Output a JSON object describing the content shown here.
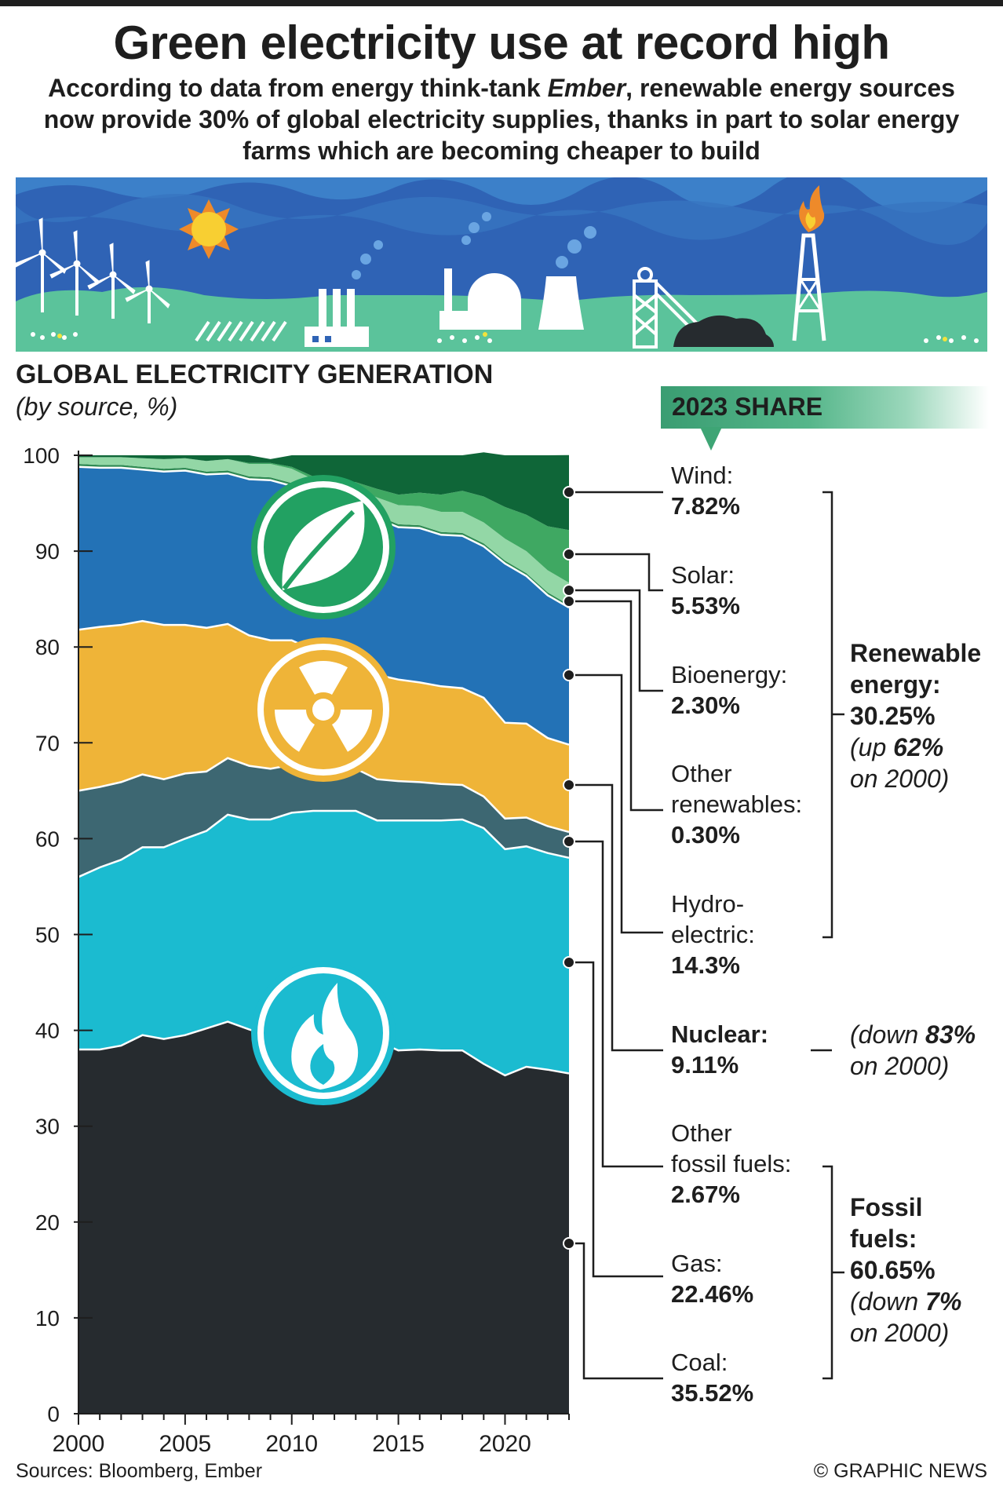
{
  "title": "Green electricity use at record high",
  "subtitle_pre": "According to data from energy think-tank ",
  "subtitle_em": "Ember",
  "subtitle_post": ", renewable energy sources now provide 30% of global electricity supplies, thanks in part to solar energy farms which are becoming cheaper to build",
  "chart_title": "GLOBAL ELECTRICITY GENERATION",
  "chart_subtitle": "(by source, %)",
  "share_heading": "2023 SHARE",
  "labels": {
    "wind": {
      "name": "Wind:",
      "value": "7.82%"
    },
    "solar": {
      "name": "Solar:",
      "value": "5.53%"
    },
    "bioenergy": {
      "name": "Bioenergy:",
      "value": "2.30%"
    },
    "other_renewables": {
      "name1": "Other",
      "name2": "renewables:",
      "value": "0.30%"
    },
    "hydro": {
      "name1": "Hydro-",
      "name2": "electric:",
      "value": "14.3%"
    },
    "nuclear": {
      "name": "Nuclear:",
      "value": "9.11%"
    },
    "other_fossil": {
      "name1": "Other",
      "name2": "fossil fuels:",
      "value": "2.67%"
    },
    "gas": {
      "name": "Gas:",
      "value": "22.46%"
    },
    "coal": {
      "name": "Coal:",
      "value": "35.52%"
    }
  },
  "groups": {
    "renewable": {
      "name1": "Renewable",
      "name2": "energy:",
      "total": "30.25%",
      "note_pre": "(up ",
      "note_num": "62%",
      "note_post": "on 2000)"
    },
    "nuclear": {
      "note_pre": "(down ",
      "note_num": "83%",
      "note_post": "on 2000)"
    },
    "fossil": {
      "name1": "Fossil",
      "name2": "fuels:",
      "total": "60.65%",
      "note_pre": "(down ",
      "note_num": "7%",
      "note_post": "on 2000)"
    }
  },
  "sources": "Sources: Bloomberg, Ember",
  "credit": "© GRAPHIC NEWS",
  "colors": {
    "coal": "#262b2f",
    "gas": "#1bbbd0",
    "other_fossil": "#3d6772",
    "nuclear": "#efb438",
    "hydro": "#2372b6",
    "other_renewables": "#2f8a53",
    "bioenergy": "#93d7a6",
    "solar": "#3fa862",
    "wind": "#0f6638",
    "banner_sky": "#2f63b5",
    "banner_hills": "#5bc39b"
  },
  "icons": [
    "leaf-icon",
    "radiation-icon",
    "flame-icon",
    "wind-turbine-icon",
    "sun-icon",
    "factory-icon",
    "nuclear-plant-icon",
    "mine-icon",
    "gas-flare-icon"
  ],
  "chart_data": {
    "type": "area",
    "stacked": true,
    "title": "GLOBAL ELECTRICITY GENERATION",
    "ylabel": "(by source, %)",
    "ylim": [
      0,
      100
    ],
    "xlim": [
      2000,
      2023
    ],
    "x_ticks": [
      2000,
      2005,
      2010,
      2015,
      2020
    ],
    "y_ticks": [
      0,
      10,
      20,
      30,
      40,
      50,
      60,
      70,
      80,
      90,
      100
    ],
    "x": [
      2000,
      2001,
      2002,
      2003,
      2004,
      2005,
      2006,
      2007,
      2008,
      2009,
      2010,
      2011,
      2012,
      2013,
      2014,
      2015,
      2016,
      2017,
      2018,
      2019,
      2020,
      2021,
      2022,
      2023
    ],
    "series": [
      {
        "name": "Coal",
        "values": [
          38.0,
          38.0,
          38.4,
          39.5,
          39.1,
          39.5,
          40.2,
          40.9,
          40.1,
          39.4,
          39.8,
          41.0,
          40.4,
          40.9,
          38.9,
          37.9,
          38.0,
          37.9,
          37.9,
          36.5,
          35.3,
          36.2,
          35.9,
          35.5
        ]
      },
      {
        "name": "Gas",
        "values": [
          18.0,
          19.0,
          19.4,
          19.6,
          20.0,
          20.5,
          20.6,
          21.6,
          21.9,
          22.6,
          22.9,
          21.9,
          22.5,
          22.0,
          23.0,
          24.0,
          23.9,
          24.0,
          24.1,
          24.6,
          23.6,
          23.0,
          22.6,
          22.5
        ]
      },
      {
        "name": "Other fossil fuels",
        "values": [
          9.0,
          8.4,
          8.1,
          7.6,
          7.1,
          6.8,
          6.2,
          5.9,
          5.6,
          5.3,
          5.0,
          4.8,
          4.6,
          4.4,
          4.3,
          4.1,
          4.0,
          3.8,
          3.6,
          3.3,
          3.2,
          3.0,
          2.8,
          2.7
        ]
      },
      {
        "name": "Nuclear",
        "values": [
          16.8,
          16.7,
          16.4,
          16.0,
          16.1,
          15.5,
          15.0,
          14.0,
          13.6,
          13.4,
          13.0,
          12.0,
          11.2,
          11.0,
          10.9,
          10.6,
          10.4,
          10.2,
          10.1,
          10.3,
          10.0,
          9.8,
          9.2,
          9.1
        ]
      },
      {
        "name": "Hydroelectric",
        "values": [
          17.0,
          16.6,
          16.4,
          15.8,
          16.0,
          16.1,
          16.0,
          15.7,
          16.3,
          16.7,
          16.1,
          15.9,
          16.3,
          16.1,
          16.3,
          15.9,
          16.1,
          15.8,
          15.9,
          15.8,
          16.6,
          15.4,
          14.9,
          14.3
        ]
      },
      {
        "name": "Other renewables",
        "values": [
          0.3,
          0.3,
          0.3,
          0.3,
          0.3,
          0.3,
          0.3,
          0.3,
          0.3,
          0.3,
          0.3,
          0.3,
          0.3,
          0.3,
          0.3,
          0.3,
          0.3,
          0.3,
          0.3,
          0.3,
          0.3,
          0.3,
          0.3,
          0.3
        ]
      },
      {
        "name": "Bioenergy",
        "values": [
          0.7,
          0.8,
          0.8,
          0.9,
          1.0,
          1.0,
          1.1,
          1.2,
          1.3,
          1.4,
          1.5,
          1.6,
          1.7,
          1.8,
          1.9,
          2.0,
          2.0,
          2.1,
          2.2,
          2.2,
          2.3,
          2.3,
          2.3,
          2.3
        ]
      },
      {
        "name": "Solar",
        "values": [
          0.0,
          0.0,
          0.0,
          0.0,
          0.0,
          0.0,
          0.0,
          0.0,
          0.1,
          0.1,
          0.2,
          0.3,
          0.5,
          0.7,
          0.9,
          1.1,
          1.4,
          1.8,
          2.2,
          2.7,
          3.3,
          3.8,
          4.6,
          5.5
        ]
      },
      {
        "name": "Wind",
        "values": [
          0.2,
          0.2,
          0.2,
          0.3,
          0.4,
          0.3,
          0.6,
          0.4,
          0.8,
          0.4,
          1.2,
          2.2,
          2.5,
          2.8,
          3.5,
          4.1,
          3.9,
          4.1,
          3.7,
          4.6,
          5.4,
          6.2,
          7.4,
          7.82
        ]
      }
    ],
    "share_2023": [
      {
        "name": "Wind",
        "value": 7.82
      },
      {
        "name": "Solar",
        "value": 5.53
      },
      {
        "name": "Bioenergy",
        "value": 2.3
      },
      {
        "name": "Other renewables",
        "value": 0.3
      },
      {
        "name": "Hydroelectric",
        "value": 14.3
      },
      {
        "name": "Nuclear",
        "value": 9.11
      },
      {
        "name": "Other fossil fuels",
        "value": 2.67
      },
      {
        "name": "Gas",
        "value": 22.46
      },
      {
        "name": "Coal",
        "value": 35.52
      }
    ],
    "group_totals": [
      {
        "name": "Renewable energy",
        "value": 30.25,
        "change_vs_2000_pct": 62
      },
      {
        "name": "Nuclear",
        "value": 9.11,
        "change_vs_2000_pct": -83
      },
      {
        "name": "Fossil fuels",
        "value": 60.65,
        "change_vs_2000_pct": -7
      }
    ]
  }
}
